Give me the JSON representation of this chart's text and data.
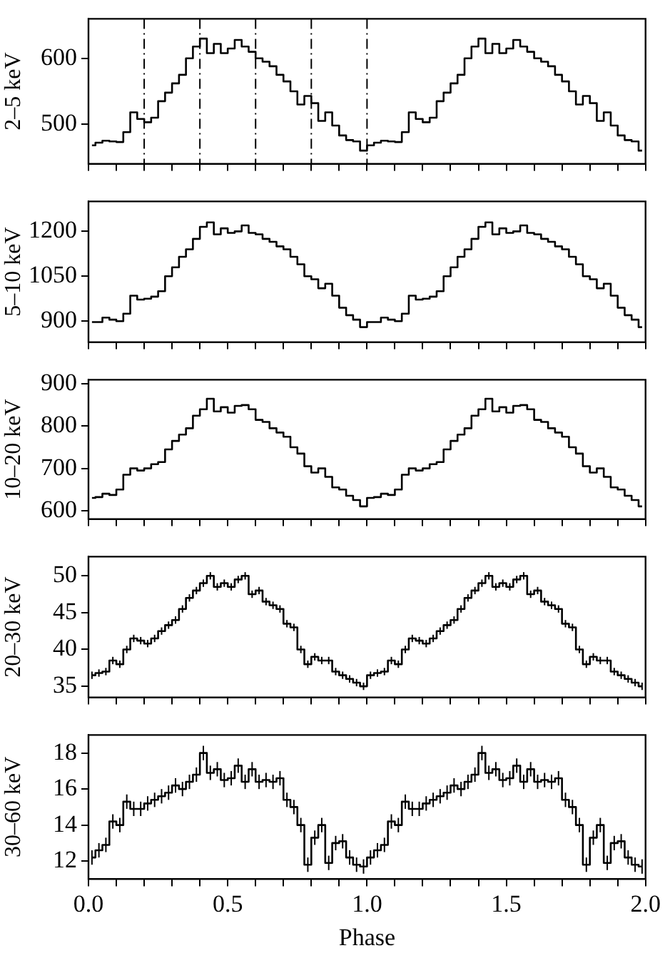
{
  "chart_data": [
    {
      "type": "step",
      "ylabel": "2–5 keV",
      "xlim": [
        0,
        2
      ],
      "ylim": [
        440,
        660
      ],
      "yticks": [
        500,
        600
      ],
      "tick_labels": "y",
      "grid": false,
      "xticks": [
        {
          "value": 0,
          "label": null
        },
        {
          "value": 0.1,
          "label": null
        },
        {
          "value": 0.2,
          "label": null
        },
        {
          "value": 0.3,
          "label": null
        },
        {
          "value": 0.4,
          "label": null
        },
        {
          "value": 0.5,
          "label": null
        },
        {
          "value": 0.6,
          "label": null
        },
        {
          "value": 0.7,
          "label": null
        },
        {
          "value": 0.8,
          "label": null
        },
        {
          "value": 0.9,
          "label": null
        },
        {
          "value": 1,
          "label": null
        },
        {
          "value": 1.1,
          "label": null
        },
        {
          "value": 1.2,
          "label": null
        },
        {
          "value": 1.3,
          "label": null
        },
        {
          "value": 1.4,
          "label": null
        },
        {
          "value": 1.5,
          "label": null
        },
        {
          "value": 1.6,
          "label": null
        },
        {
          "value": 1.7,
          "label": null
        },
        {
          "value": 1.8,
          "label": null
        },
        {
          "value": 1.9,
          "label": null
        },
        {
          "value": 2,
          "label": null
        }
      ],
      "ref_lines": [
        {
          "axis": "x",
          "value": 0.2,
          "line_style": "dashdot"
        },
        {
          "axis": "x",
          "value": 0.4,
          "line_style": "dashdot"
        },
        {
          "axis": "x",
          "value": 0.6,
          "line_style": "dashdot"
        },
        {
          "axis": "x",
          "value": 0.8,
          "line_style": "dashdot"
        },
        {
          "axis": "x",
          "value": 1.0,
          "line_style": "dashdot"
        }
      ],
      "x": [
        0.0125,
        0.0375,
        0.0625,
        0.0875,
        0.1125,
        0.1375,
        0.1625,
        0.1875,
        0.2125,
        0.2375,
        0.2625,
        0.2875,
        0.3125,
        0.3375,
        0.3625,
        0.3875,
        0.4125,
        0.4375,
        0.4625,
        0.4875,
        0.5125,
        0.5375,
        0.5625,
        0.5875,
        0.6125,
        0.6375,
        0.6625,
        0.6875,
        0.7125,
        0.7375,
        0.7625,
        0.7875,
        0.8125,
        0.8375,
        0.8625,
        0.8875,
        0.9125,
        0.9375,
        0.9625,
        0.9875,
        1.0125,
        1.0375,
        1.0625,
        1.0875,
        1.1125,
        1.1375,
        1.1625,
        1.1875,
        1.2125,
        1.2375,
        1.2625,
        1.2875,
        1.3125,
        1.3375,
        1.3625,
        1.3875,
        1.4125,
        1.4375,
        1.4625,
        1.4875,
        1.5125,
        1.5375,
        1.5625,
        1.5875,
        1.6125,
        1.6375,
        1.6625,
        1.6875,
        1.7125,
        1.7375,
        1.7625,
        1.7875,
        1.8125,
        1.8375,
        1.8625,
        1.8875,
        1.9125,
        1.9375,
        1.9625,
        1.9875
      ],
      "series": [
        {
          "color": "#000000",
          "values": [
            468,
            472,
            475,
            474,
            473,
            488,
            518,
            508,
            503,
            510,
            535,
            548,
            562,
            575,
            600,
            618,
            630,
            608,
            622,
            608,
            615,
            628,
            618,
            610,
            600,
            595,
            588,
            575,
            565,
            550,
            530,
            543,
            532,
            505,
            518,
            498,
            483,
            476,
            474,
            460,
            468,
            472,
            475,
            474,
            473,
            488,
            518,
            508,
            503,
            510,
            535,
            548,
            562,
            575,
            600,
            618,
            630,
            608,
            622,
            608,
            615,
            628,
            618,
            610,
            600,
            595,
            588,
            575,
            565,
            550,
            530,
            543,
            532,
            505,
            518,
            498,
            483,
            476,
            474,
            460
          ]
        }
      ]
    },
    {
      "type": "step",
      "ylabel": "5–10 keV",
      "xlim": [
        0,
        2
      ],
      "ylim": [
        830,
        1300
      ],
      "yticks": [
        900,
        1050,
        1200
      ],
      "tick_labels": "y",
      "grid": false,
      "xticks": [
        {
          "value": 0,
          "label": null
        },
        {
          "value": 0.1,
          "label": null
        },
        {
          "value": 0.2,
          "label": null
        },
        {
          "value": 0.3,
          "label": null
        },
        {
          "value": 0.4,
          "label": null
        },
        {
          "value": 0.5,
          "label": null
        },
        {
          "value": 0.6,
          "label": null
        },
        {
          "value": 0.7,
          "label": null
        },
        {
          "value": 0.8,
          "label": null
        },
        {
          "value": 0.9,
          "label": null
        },
        {
          "value": 1,
          "label": null
        },
        {
          "value": 1.1,
          "label": null
        },
        {
          "value": 1.2,
          "label": null
        },
        {
          "value": 1.3,
          "label": null
        },
        {
          "value": 1.4,
          "label": null
        },
        {
          "value": 1.5,
          "label": null
        },
        {
          "value": 1.6,
          "label": null
        },
        {
          "value": 1.7,
          "label": null
        },
        {
          "value": 1.8,
          "label": null
        },
        {
          "value": 1.9,
          "label": null
        },
        {
          "value": 2,
          "label": null
        }
      ],
      "x": [
        0.0125,
        0.0375,
        0.0625,
        0.0875,
        0.1125,
        0.1375,
        0.1625,
        0.1875,
        0.2125,
        0.2375,
        0.2625,
        0.2875,
        0.3125,
        0.3375,
        0.3625,
        0.3875,
        0.4125,
        0.4375,
        0.4625,
        0.4875,
        0.5125,
        0.5375,
        0.5625,
        0.5875,
        0.6125,
        0.6375,
        0.6625,
        0.6875,
        0.7125,
        0.7375,
        0.7625,
        0.7875,
        0.8125,
        0.8375,
        0.8625,
        0.8875,
        0.9125,
        0.9375,
        0.9625,
        0.9875,
        1.0125,
        1.0375,
        1.0625,
        1.0875,
        1.1125,
        1.1375,
        1.1625,
        1.1875,
        1.2125,
        1.2375,
        1.2625,
        1.2875,
        1.3125,
        1.3375,
        1.3625,
        1.3875,
        1.4125,
        1.4375,
        1.4625,
        1.4875,
        1.5125,
        1.5375,
        1.5625,
        1.5875,
        1.6125,
        1.6375,
        1.6625,
        1.6875,
        1.7125,
        1.7375,
        1.7625,
        1.7875,
        1.8125,
        1.8375,
        1.8625,
        1.8875,
        1.9125,
        1.9375,
        1.9625,
        1.9875
      ],
      "series": [
        {
          "color": "#000000",
          "values": [
            897,
            897,
            912,
            905,
            900,
            925,
            985,
            972,
            975,
            982,
            1000,
            1050,
            1080,
            1115,
            1140,
            1175,
            1215,
            1230,
            1190,
            1210,
            1195,
            1200,
            1220,
            1195,
            1190,
            1175,
            1165,
            1150,
            1140,
            1115,
            1090,
            1050,
            1040,
            1010,
            1025,
            985,
            945,
            920,
            905,
            880,
            897,
            897,
            912,
            905,
            900,
            925,
            985,
            972,
            975,
            982,
            1000,
            1050,
            1080,
            1115,
            1140,
            1175,
            1215,
            1230,
            1190,
            1210,
            1195,
            1200,
            1220,
            1195,
            1190,
            1175,
            1165,
            1150,
            1140,
            1115,
            1090,
            1050,
            1040,
            1010,
            1025,
            985,
            945,
            920,
            905,
            880
          ]
        }
      ]
    },
    {
      "type": "step",
      "ylabel": "10–20 keV",
      "xlim": [
        0,
        2
      ],
      "ylim": [
        580,
        910
      ],
      "yticks": [
        600,
        700,
        800,
        900
      ],
      "tick_labels": "y",
      "grid": false,
      "xticks": [
        {
          "value": 0,
          "label": null
        },
        {
          "value": 0.1,
          "label": null
        },
        {
          "value": 0.2,
          "label": null
        },
        {
          "value": 0.3,
          "label": null
        },
        {
          "value": 0.4,
          "label": null
        },
        {
          "value": 0.5,
          "label": null
        },
        {
          "value": 0.6,
          "label": null
        },
        {
          "value": 0.7,
          "label": null
        },
        {
          "value": 0.8,
          "label": null
        },
        {
          "value": 0.9,
          "label": null
        },
        {
          "value": 1,
          "label": null
        },
        {
          "value": 1.1,
          "label": null
        },
        {
          "value": 1.2,
          "label": null
        },
        {
          "value": 1.3,
          "label": null
        },
        {
          "value": 1.4,
          "label": null
        },
        {
          "value": 1.5,
          "label": null
        },
        {
          "value": 1.6,
          "label": null
        },
        {
          "value": 1.7,
          "label": null
        },
        {
          "value": 1.8,
          "label": null
        },
        {
          "value": 1.9,
          "label": null
        },
        {
          "value": 2,
          "label": null
        }
      ],
      "x": [
        0.0125,
        0.0375,
        0.0625,
        0.0875,
        0.1125,
        0.1375,
        0.1625,
        0.1875,
        0.2125,
        0.2375,
        0.2625,
        0.2875,
        0.3125,
        0.3375,
        0.3625,
        0.3875,
        0.4125,
        0.4375,
        0.4625,
        0.4875,
        0.5125,
        0.5375,
        0.5625,
        0.5875,
        0.6125,
        0.6375,
        0.6625,
        0.6875,
        0.7125,
        0.7375,
        0.7625,
        0.7875,
        0.8125,
        0.8375,
        0.8625,
        0.8875,
        0.9125,
        0.9375,
        0.9625,
        0.9875,
        1.0125,
        1.0375,
        1.0625,
        1.0875,
        1.1125,
        1.1375,
        1.1625,
        1.1875,
        1.2125,
        1.2375,
        1.2625,
        1.2875,
        1.3125,
        1.3375,
        1.3625,
        1.3875,
        1.4125,
        1.4375,
        1.4625,
        1.4875,
        1.5125,
        1.5375,
        1.5625,
        1.5875,
        1.6125,
        1.6375,
        1.6625,
        1.6875,
        1.7125,
        1.7375,
        1.7625,
        1.7875,
        1.8125,
        1.8375,
        1.8625,
        1.8875,
        1.9125,
        1.9375,
        1.9625,
        1.9875
      ],
      "series": [
        {
          "color": "#000000",
          "values": [
            630,
            632,
            640,
            637,
            650,
            685,
            700,
            695,
            700,
            710,
            715,
            745,
            765,
            780,
            795,
            825,
            840,
            865,
            835,
            845,
            832,
            848,
            850,
            840,
            815,
            810,
            795,
            785,
            775,
            750,
            735,
            705,
            690,
            700,
            680,
            655,
            650,
            635,
            625,
            610,
            630,
            632,
            640,
            637,
            650,
            685,
            700,
            695,
            700,
            710,
            715,
            745,
            765,
            780,
            795,
            825,
            840,
            865,
            835,
            845,
            832,
            848,
            850,
            840,
            815,
            810,
            795,
            785,
            775,
            750,
            735,
            705,
            690,
            700,
            680,
            655,
            650,
            635,
            625,
            610
          ]
        }
      ]
    },
    {
      "type": "step",
      "ylabel": "20–30 keV",
      "xlim": [
        0,
        2
      ],
      "ylim": [
        33.5,
        52.6
      ],
      "yticks": [
        35,
        40,
        45,
        50
      ],
      "tick_labels": "y",
      "grid": false,
      "xticks": [
        {
          "value": 0,
          "label": null
        },
        {
          "value": 0.1,
          "label": null
        },
        {
          "value": 0.2,
          "label": null
        },
        {
          "value": 0.3,
          "label": null
        },
        {
          "value": 0.4,
          "label": null
        },
        {
          "value": 0.5,
          "label": null
        },
        {
          "value": 0.6,
          "label": null
        },
        {
          "value": 0.7,
          "label": null
        },
        {
          "value": 0.8,
          "label": null
        },
        {
          "value": 0.9,
          "label": null
        },
        {
          "value": 1,
          "label": null
        },
        {
          "value": 1.1,
          "label": null
        },
        {
          "value": 1.2,
          "label": null
        },
        {
          "value": 1.3,
          "label": null
        },
        {
          "value": 1.4,
          "label": null
        },
        {
          "value": 1.5,
          "label": null
        },
        {
          "value": 1.6,
          "label": null
        },
        {
          "value": 1.7,
          "label": null
        },
        {
          "value": 1.8,
          "label": null
        },
        {
          "value": 1.9,
          "label": null
        },
        {
          "value": 2,
          "label": null
        }
      ],
      "x": [
        0.0125,
        0.0375,
        0.0625,
        0.0875,
        0.1125,
        0.1375,
        0.1625,
        0.1875,
        0.2125,
        0.2375,
        0.2625,
        0.2875,
        0.3125,
        0.3375,
        0.3625,
        0.3875,
        0.4125,
        0.4375,
        0.4625,
        0.4875,
        0.5125,
        0.5375,
        0.5625,
        0.5875,
        0.6125,
        0.6375,
        0.6625,
        0.6875,
        0.7125,
        0.7375,
        0.7625,
        0.7875,
        0.8125,
        0.8375,
        0.8625,
        0.8875,
        0.9125,
        0.9375,
        0.9625,
        0.9875,
        1.0125,
        1.0375,
        1.0625,
        1.0875,
        1.1125,
        1.1375,
        1.1625,
        1.1875,
        1.2125,
        1.2375,
        1.2625,
        1.2875,
        1.3125,
        1.3375,
        1.3625,
        1.3875,
        1.4125,
        1.4375,
        1.4625,
        1.4875,
        1.5125,
        1.5375,
        1.5625,
        1.5875,
        1.6125,
        1.6375,
        1.6625,
        1.6875,
        1.7125,
        1.7375,
        1.7625,
        1.7875,
        1.8125,
        1.8375,
        1.8625,
        1.8875,
        1.9125,
        1.9375,
        1.9625,
        1.9875
      ],
      "series": [
        {
          "color": "#000000",
          "values": [
            36.5,
            36.8,
            37,
            38.5,
            38,
            40,
            41.5,
            41.2,
            40.8,
            41.5,
            42.5,
            43.3,
            44,
            45.5,
            47,
            48,
            49,
            50,
            48.5,
            49,
            48.5,
            49.5,
            50,
            47.5,
            48,
            46.5,
            46,
            45.5,
            43.5,
            43,
            40,
            38,
            39,
            38.5,
            38.5,
            37,
            36.5,
            36,
            35.5,
            35,
            36.5,
            36.8,
            37,
            38.5,
            38,
            40,
            41.5,
            41.2,
            40.8,
            41.5,
            42.5,
            43.3,
            44,
            45.5,
            47,
            48,
            49,
            50,
            48.5,
            49,
            48.5,
            49.5,
            50,
            47.5,
            48,
            46.5,
            46,
            45.5,
            43.5,
            43,
            40,
            38,
            39,
            38.5,
            38.5,
            37,
            36.5,
            36,
            35.5,
            35
          ],
          "errors": [
            0.5,
            0.5,
            0.5,
            0.5,
            0.5,
            0.5,
            0.5,
            0.5,
            0.5,
            0.5,
            0.5,
            0.5,
            0.5,
            0.5,
            0.5,
            0.5,
            0.5,
            0.5,
            0.5,
            0.5,
            0.5,
            0.5,
            0.5,
            0.5,
            0.5,
            0.5,
            0.5,
            0.5,
            0.5,
            0.5,
            0.5,
            0.5,
            0.5,
            0.5,
            0.5,
            0.5,
            0.5,
            0.5,
            0.5,
            0.5,
            0.5,
            0.5,
            0.5,
            0.5,
            0.5,
            0.5,
            0.5,
            0.5,
            0.5,
            0.5,
            0.5,
            0.5,
            0.5,
            0.5,
            0.5,
            0.5,
            0.5,
            0.5,
            0.5,
            0.5,
            0.5,
            0.5,
            0.5,
            0.5,
            0.5,
            0.5,
            0.5,
            0.5,
            0.5,
            0.5,
            0.5,
            0.5,
            0.5,
            0.5,
            0.5,
            0.5,
            0.5,
            0.5,
            0.5,
            0.5
          ]
        }
      ]
    },
    {
      "type": "step",
      "ylabel": "30–60 keV",
      "xlabel": "Phase",
      "xlim": [
        0,
        2
      ],
      "ylim": [
        11,
        19
      ],
      "yticks": [
        12,
        14,
        16,
        18
      ],
      "grid": false,
      "xticks": [
        {
          "value": 0,
          "label": "0.0"
        },
        {
          "value": 0.1,
          "label": null
        },
        {
          "value": 0.2,
          "label": null
        },
        {
          "value": 0.3,
          "label": null
        },
        {
          "value": 0.4,
          "label": null
        },
        {
          "value": 0.5,
          "label": "0.5"
        },
        {
          "value": 0.6,
          "label": null
        },
        {
          "value": 0.7,
          "label": null
        },
        {
          "value": 0.8,
          "label": null
        },
        {
          "value": 0.9,
          "label": null
        },
        {
          "value": 1,
          "label": "1.0"
        },
        {
          "value": 1.1,
          "label": null
        },
        {
          "value": 1.2,
          "label": null
        },
        {
          "value": 1.3,
          "label": null
        },
        {
          "value": 1.4,
          "label": null
        },
        {
          "value": 1.5,
          "label": "1.5"
        },
        {
          "value": 1.6,
          "label": null
        },
        {
          "value": 1.7,
          "label": null
        },
        {
          "value": 1.8,
          "label": null
        },
        {
          "value": 1.9,
          "label": null
        },
        {
          "value": 2,
          "label": "2.0"
        }
      ],
      "x": [
        0.0125,
        0.0375,
        0.0625,
        0.0875,
        0.1125,
        0.1375,
        0.1625,
        0.1875,
        0.2125,
        0.2375,
        0.2625,
        0.2875,
        0.3125,
        0.3375,
        0.3625,
        0.3875,
        0.4125,
        0.4375,
        0.4625,
        0.4875,
        0.5125,
        0.5375,
        0.5625,
        0.5875,
        0.6125,
        0.6375,
        0.6625,
        0.6875,
        0.7125,
        0.7375,
        0.7625,
        0.7875,
        0.8125,
        0.8375,
        0.8625,
        0.8875,
        0.9125,
        0.9375,
        0.9625,
        0.9875,
        1.0125,
        1.0375,
        1.0625,
        1.0875,
        1.1125,
        1.1375,
        1.1625,
        1.1875,
        1.2125,
        1.2375,
        1.2625,
        1.2875,
        1.3125,
        1.3375,
        1.3625,
        1.3875,
        1.4125,
        1.4375,
        1.4625,
        1.4875,
        1.5125,
        1.5375,
        1.5625,
        1.5875,
        1.6125,
        1.6375,
        1.6625,
        1.6875,
        1.7125,
        1.7375,
        1.7625,
        1.7875,
        1.8125,
        1.8375,
        1.8625,
        1.8875,
        1.9125,
        1.9375,
        1.9625,
        1.9875
      ],
      "series": [
        {
          "color": "#000000",
          "values": [
            12.2,
            12.6,
            12.9,
            14.2,
            14,
            15.3,
            14.9,
            14.9,
            15.2,
            15.4,
            15.6,
            15.8,
            16.2,
            16,
            16.4,
            16.8,
            18,
            16.9,
            17.1,
            16.5,
            16.6,
            17.3,
            16.4,
            17.1,
            16.4,
            16.5,
            16.4,
            16.6,
            15.4,
            15,
            14,
            11.8,
            13.3,
            14,
            11.9,
            13,
            13.1,
            12.2,
            11.8,
            11.7,
            12.2,
            12.6,
            12.9,
            14.2,
            14,
            15.3,
            14.9,
            14.9,
            15.2,
            15.4,
            15.6,
            15.8,
            16.2,
            16,
            16.4,
            16.8,
            18,
            16.9,
            17.1,
            16.5,
            16.6,
            17.3,
            16.4,
            17.1,
            16.4,
            16.5,
            16.4,
            16.6,
            15.4,
            15,
            14,
            11.8,
            13.3,
            14,
            11.9,
            13,
            13.1,
            12.2,
            11.8,
            11.7
          ],
          "errors": [
            0.4,
            0.4,
            0.4,
            0.4,
            0.4,
            0.4,
            0.4,
            0.4,
            0.4,
            0.4,
            0.4,
            0.4,
            0.4,
            0.4,
            0.4,
            0.4,
            0.4,
            0.4,
            0.4,
            0.4,
            0.4,
            0.4,
            0.4,
            0.4,
            0.4,
            0.4,
            0.4,
            0.4,
            0.4,
            0.4,
            0.4,
            0.4,
            0.4,
            0.4,
            0.4,
            0.4,
            0.4,
            0.4,
            0.4,
            0.4,
            0.4,
            0.4,
            0.4,
            0.4,
            0.4,
            0.4,
            0.4,
            0.4,
            0.4,
            0.4,
            0.4,
            0.4,
            0.4,
            0.4,
            0.4,
            0.4,
            0.4,
            0.4,
            0.4,
            0.4,
            0.4,
            0.4,
            0.4,
            0.4,
            0.4,
            0.4,
            0.4,
            0.4,
            0.4,
            0.4,
            0.4,
            0.4,
            0.4,
            0.4,
            0.4,
            0.4,
            0.4,
            0.4,
            0.4,
            0.4
          ]
        }
      ]
    }
  ]
}
